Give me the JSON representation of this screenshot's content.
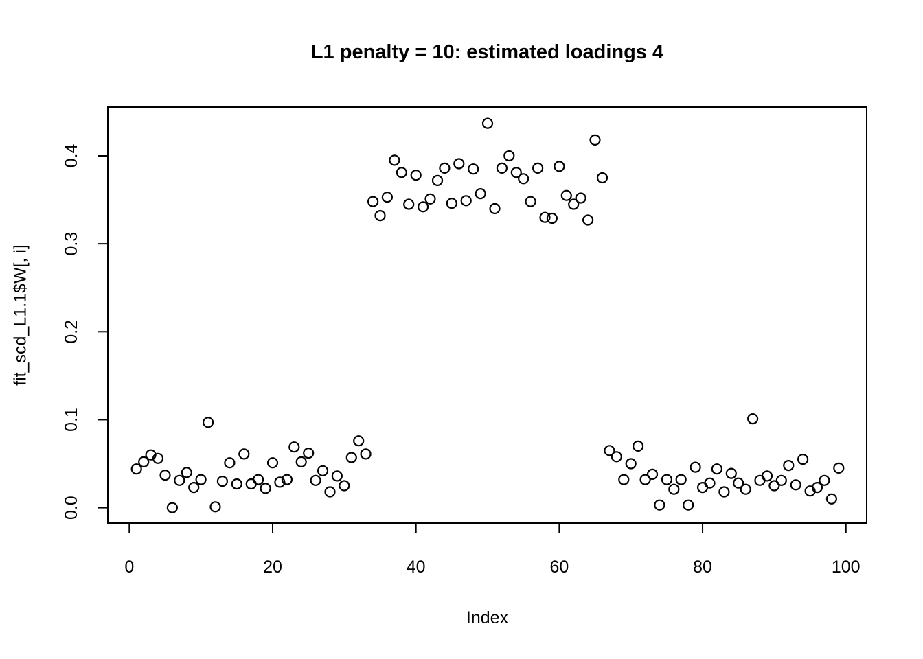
{
  "page": {
    "background_color": "#ffffff",
    "foreground_color": "#000000"
  },
  "chart_data": {
    "type": "scatter",
    "title": "L1 penalty = 10: estimated loadings 4",
    "xlabel": "Index",
    "ylabel": "fit_scd_L1.1$W[, i]",
    "marker": "open-circle",
    "marker_color": "#000000",
    "grid": false,
    "legend": null,
    "xlim": [
      -3.0,
      102.9
    ],
    "ylim": [
      -0.0175,
      0.4554
    ],
    "x_ticks": [
      0,
      20,
      40,
      60,
      80,
      100
    ],
    "x_tick_labels": [
      "0",
      "20",
      "40",
      "60",
      "80",
      "100"
    ],
    "y_ticks": [
      0.0,
      0.1,
      0.2,
      0.3,
      0.4
    ],
    "y_tick_labels": [
      "0.0",
      "0.1",
      "0.2",
      "0.3",
      "0.4"
    ],
    "x": [
      1,
      2,
      3,
      4,
      5,
      6,
      7,
      8,
      9,
      10,
      11,
      12,
      13,
      14,
      15,
      16,
      17,
      18,
      19,
      20,
      21,
      22,
      23,
      24,
      25,
      26,
      27,
      28,
      29,
      30,
      31,
      32,
      33,
      34,
      35,
      36,
      37,
      38,
      39,
      40,
      41,
      42,
      43,
      44,
      45,
      46,
      47,
      48,
      49,
      50,
      51,
      52,
      53,
      54,
      55,
      56,
      57,
      58,
      59,
      60,
      61,
      62,
      63,
      64,
      65,
      66,
      67,
      68,
      69,
      70,
      71,
      72,
      73,
      74,
      75,
      76,
      77,
      78,
      79,
      80,
      81,
      82,
      83,
      84,
      85,
      86,
      87,
      88,
      89,
      90,
      91,
      92,
      93,
      94,
      95,
      96,
      97,
      98,
      99
    ],
    "y": [
      0.044,
      0.052,
      0.06,
      0.056,
      0.037,
      0.0,
      0.031,
      0.04,
      0.023,
      0.032,
      0.097,
      0.001,
      0.03,
      0.051,
      0.027,
      0.061,
      0.027,
      0.032,
      0.022,
      0.051,
      0.029,
      0.032,
      0.069,
      0.052,
      0.062,
      0.031,
      0.042,
      0.018,
      0.036,
      0.025,
      0.057,
      0.076,
      0.061,
      0.348,
      0.332,
      0.353,
      0.395,
      0.381,
      0.345,
      0.378,
      0.342,
      0.351,
      0.372,
      0.386,
      0.346,
      0.391,
      0.349,
      0.385,
      0.357,
      0.437,
      0.34,
      0.386,
      0.4,
      0.381,
      0.374,
      0.348,
      0.386,
      0.33,
      0.329,
      0.388,
      0.355,
      0.345,
      0.352,
      0.327,
      0.418,
      0.375,
      0.065,
      0.058,
      0.032,
      0.05,
      0.07,
      0.032,
      0.038,
      0.003,
      0.032,
      0.021,
      0.032,
      0.003,
      0.046,
      0.023,
      0.028,
      0.044,
      0.018,
      0.039,
      0.028,
      0.021,
      0.101,
      0.031,
      0.036,
      0.025,
      0.031,
      0.048,
      0.026,
      0.055,
      0.019,
      0.023,
      0.031,
      0.01,
      0.045
    ]
  }
}
